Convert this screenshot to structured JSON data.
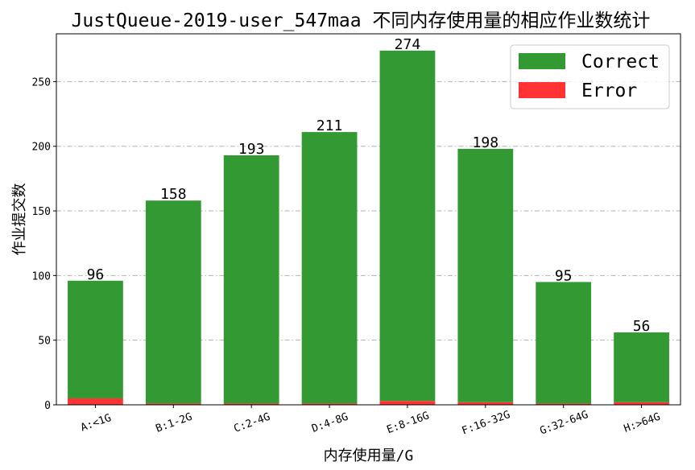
{
  "chart_data": {
    "type": "bar",
    "stacked": true,
    "title": "JustQueue-2019-user_547maa 不同内存使用量的相应作业数统计",
    "xlabel": "内存使用量/G",
    "ylabel": "作业提交数",
    "categories": [
      "A:<1G",
      "B:1-2G",
      "C:2-4G",
      "D:4-8G",
      "E:8-16G",
      "F:16-32G",
      "G:32-64G",
      "H:>64G"
    ],
    "series": [
      {
        "name": "Correct",
        "color": "#339933",
        "values": [
          91,
          157,
          192,
          210,
          271,
          196,
          94,
          54
        ]
      },
      {
        "name": "Error",
        "color": "#ff3333",
        "values": [
          5,
          1,
          1,
          1,
          3,
          2,
          1,
          2
        ]
      }
    ],
    "totals": [
      96,
      158,
      193,
      211,
      274,
      198,
      95,
      56
    ],
    "ylim": [
      0,
      287
    ],
    "yticks": [
      0,
      50,
      100,
      150,
      200,
      250
    ],
    "grid": "y-dashdot",
    "legend_position": "top-right"
  }
}
